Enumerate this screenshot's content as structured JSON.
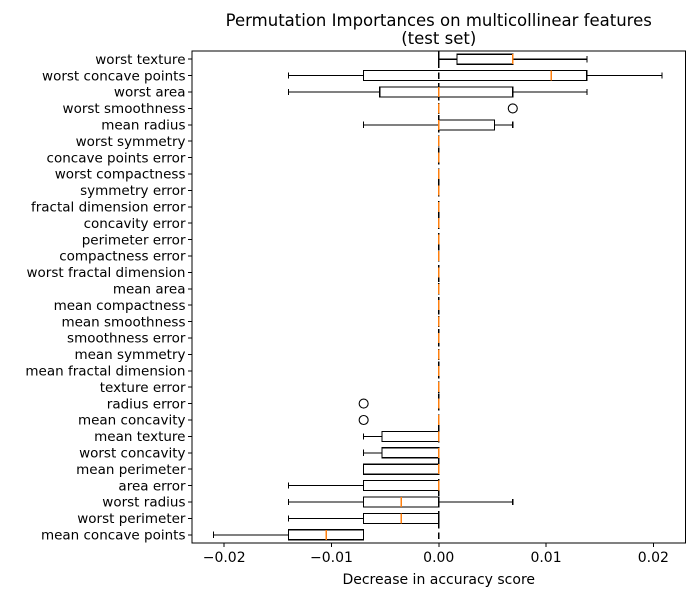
{
  "chart_data": {
    "type": "boxplot",
    "orientation": "horizontal",
    "title": "Permutation Importances on multicollinear features",
    "subtitle": "(test set)",
    "xlabel": "Decrease in accuracy score",
    "ylabel": "",
    "grid": false,
    "legend": "none",
    "xlim": [
      -0.023,
      0.023
    ],
    "xticks": [
      -0.02,
      -0.01,
      0.0,
      0.01,
      0.02
    ],
    "xtick_labels": [
      "−0.02",
      "−0.01",
      "0.00",
      "0.01",
      "0.02"
    ],
    "zero_line": {
      "x": 0,
      "style": "dashed",
      "color": "#000000"
    },
    "colors": {
      "box_line": "#000000",
      "median": "#ff7f0e",
      "outlier_stroke": "#000000",
      "background": "#ffffff"
    },
    "categories_top_to_bottom": [
      "worst texture",
      "worst concave points",
      "worst area",
      "worst smoothness",
      "mean radius",
      "worst symmetry",
      "concave points error",
      "worst compactness",
      "symmetry error",
      "fractal dimension error",
      "concavity error",
      "perimeter error",
      "compactness error",
      "worst fractal dimension",
      "mean area",
      "mean compactness",
      "mean smoothness",
      "smoothness error",
      "mean symmetry",
      "mean fractal dimension",
      "texture error",
      "radius error",
      "mean concavity",
      "mean texture",
      "worst concavity",
      "mean perimeter",
      "area error",
      "worst radius",
      "worst perimeter",
      "mean concave points"
    ],
    "boxes": [
      {
        "label": "worst texture",
        "whislo": 0.0,
        "q1": 0.0017,
        "med": 0.0069,
        "q3": 0.0069,
        "whishi": 0.0138,
        "fliers": []
      },
      {
        "label": "worst concave points",
        "whislo": -0.014,
        "q1": -0.007,
        "med": 0.0105,
        "q3": 0.0138,
        "whishi": 0.0208,
        "fliers": []
      },
      {
        "label": "worst area",
        "whislo": -0.014,
        "q1": -0.0055,
        "med": 0.0,
        "q3": 0.0069,
        "whishi": 0.0138,
        "fliers": []
      },
      {
        "label": "worst smoothness",
        "whislo": 0.0,
        "q1": 0.0,
        "med": 0.0,
        "q3": 0.0,
        "whishi": 0.0,
        "fliers": [
          0.0069
        ]
      },
      {
        "label": "mean radius",
        "whislo": -0.007,
        "q1": 0.0,
        "med": 0.0,
        "q3": 0.0052,
        "whishi": 0.0069,
        "fliers": []
      },
      {
        "label": "worst symmetry",
        "whislo": 0.0,
        "q1": 0.0,
        "med": 0.0,
        "q3": 0.0,
        "whishi": 0.0,
        "fliers": []
      },
      {
        "label": "concave points error",
        "whislo": 0.0,
        "q1": 0.0,
        "med": 0.0,
        "q3": 0.0,
        "whishi": 0.0,
        "fliers": []
      },
      {
        "label": "worst compactness",
        "whislo": 0.0,
        "q1": 0.0,
        "med": 0.0,
        "q3": 0.0,
        "whishi": 0.0,
        "fliers": []
      },
      {
        "label": "symmetry error",
        "whislo": 0.0,
        "q1": 0.0,
        "med": 0.0,
        "q3": 0.0,
        "whishi": 0.0,
        "fliers": []
      },
      {
        "label": "fractal dimension error",
        "whislo": 0.0,
        "q1": 0.0,
        "med": 0.0,
        "q3": 0.0,
        "whishi": 0.0,
        "fliers": []
      },
      {
        "label": "concavity error",
        "whislo": 0.0,
        "q1": 0.0,
        "med": 0.0,
        "q3": 0.0,
        "whishi": 0.0,
        "fliers": []
      },
      {
        "label": "perimeter error",
        "whislo": 0.0,
        "q1": 0.0,
        "med": 0.0,
        "q3": 0.0,
        "whishi": 0.0,
        "fliers": []
      },
      {
        "label": "compactness error",
        "whislo": 0.0,
        "q1": 0.0,
        "med": 0.0,
        "q3": 0.0,
        "whishi": 0.0,
        "fliers": []
      },
      {
        "label": "worst fractal dimension",
        "whislo": 0.0,
        "q1": 0.0,
        "med": 0.0,
        "q3": 0.0,
        "whishi": 0.0,
        "fliers": []
      },
      {
        "label": "mean area",
        "whislo": 0.0,
        "q1": 0.0,
        "med": 0.0,
        "q3": 0.0,
        "whishi": 0.0,
        "fliers": []
      },
      {
        "label": "mean compactness",
        "whislo": 0.0,
        "q1": 0.0,
        "med": 0.0,
        "q3": 0.0,
        "whishi": 0.0,
        "fliers": []
      },
      {
        "label": "mean smoothness",
        "whislo": 0.0,
        "q1": 0.0,
        "med": 0.0,
        "q3": 0.0,
        "whishi": 0.0,
        "fliers": []
      },
      {
        "label": "smoothness error",
        "whislo": 0.0,
        "q1": 0.0,
        "med": 0.0,
        "q3": 0.0,
        "whishi": 0.0,
        "fliers": []
      },
      {
        "label": "mean symmetry",
        "whislo": 0.0,
        "q1": 0.0,
        "med": 0.0,
        "q3": 0.0,
        "whishi": 0.0,
        "fliers": []
      },
      {
        "label": "mean fractal dimension",
        "whislo": 0.0,
        "q1": 0.0,
        "med": 0.0,
        "q3": 0.0,
        "whishi": 0.0,
        "fliers": []
      },
      {
        "label": "texture error",
        "whislo": 0.0,
        "q1": 0.0,
        "med": 0.0,
        "q3": 0.0,
        "whishi": 0.0,
        "fliers": []
      },
      {
        "label": "radius error",
        "whislo": 0.0,
        "q1": 0.0,
        "med": 0.0,
        "q3": 0.0,
        "whishi": 0.0,
        "fliers": [
          -0.007
        ]
      },
      {
        "label": "mean concavity",
        "whislo": 0.0,
        "q1": 0.0,
        "med": 0.0,
        "q3": 0.0,
        "whishi": 0.0,
        "fliers": [
          -0.007
        ]
      },
      {
        "label": "mean texture",
        "whislo": -0.007,
        "q1": -0.0053,
        "med": 0.0,
        "q3": 0.0,
        "whishi": 0.0,
        "fliers": []
      },
      {
        "label": "worst concavity",
        "whislo": -0.007,
        "q1": -0.0053,
        "med": 0.0,
        "q3": 0.0,
        "whishi": 0.0,
        "fliers": []
      },
      {
        "label": "mean perimeter",
        "whislo": -0.007,
        "q1": -0.007,
        "med": 0.0,
        "q3": 0.0,
        "whishi": 0.0,
        "fliers": []
      },
      {
        "label": "area error",
        "whislo": -0.014,
        "q1": -0.007,
        "med": 0.0,
        "q3": 0.0,
        "whishi": 0.0,
        "fliers": []
      },
      {
        "label": "worst radius",
        "whislo": -0.014,
        "q1": -0.007,
        "med": -0.0035,
        "q3": 0.0,
        "whishi": 0.0069,
        "fliers": []
      },
      {
        "label": "worst perimeter",
        "whislo": -0.014,
        "q1": -0.007,
        "med": -0.0035,
        "q3": 0.0,
        "whishi": 0.0,
        "fliers": []
      },
      {
        "label": "mean concave points",
        "whislo": -0.021,
        "q1": -0.014,
        "med": -0.0105,
        "q3": -0.007,
        "whishi": -0.007,
        "fliers": []
      }
    ]
  }
}
